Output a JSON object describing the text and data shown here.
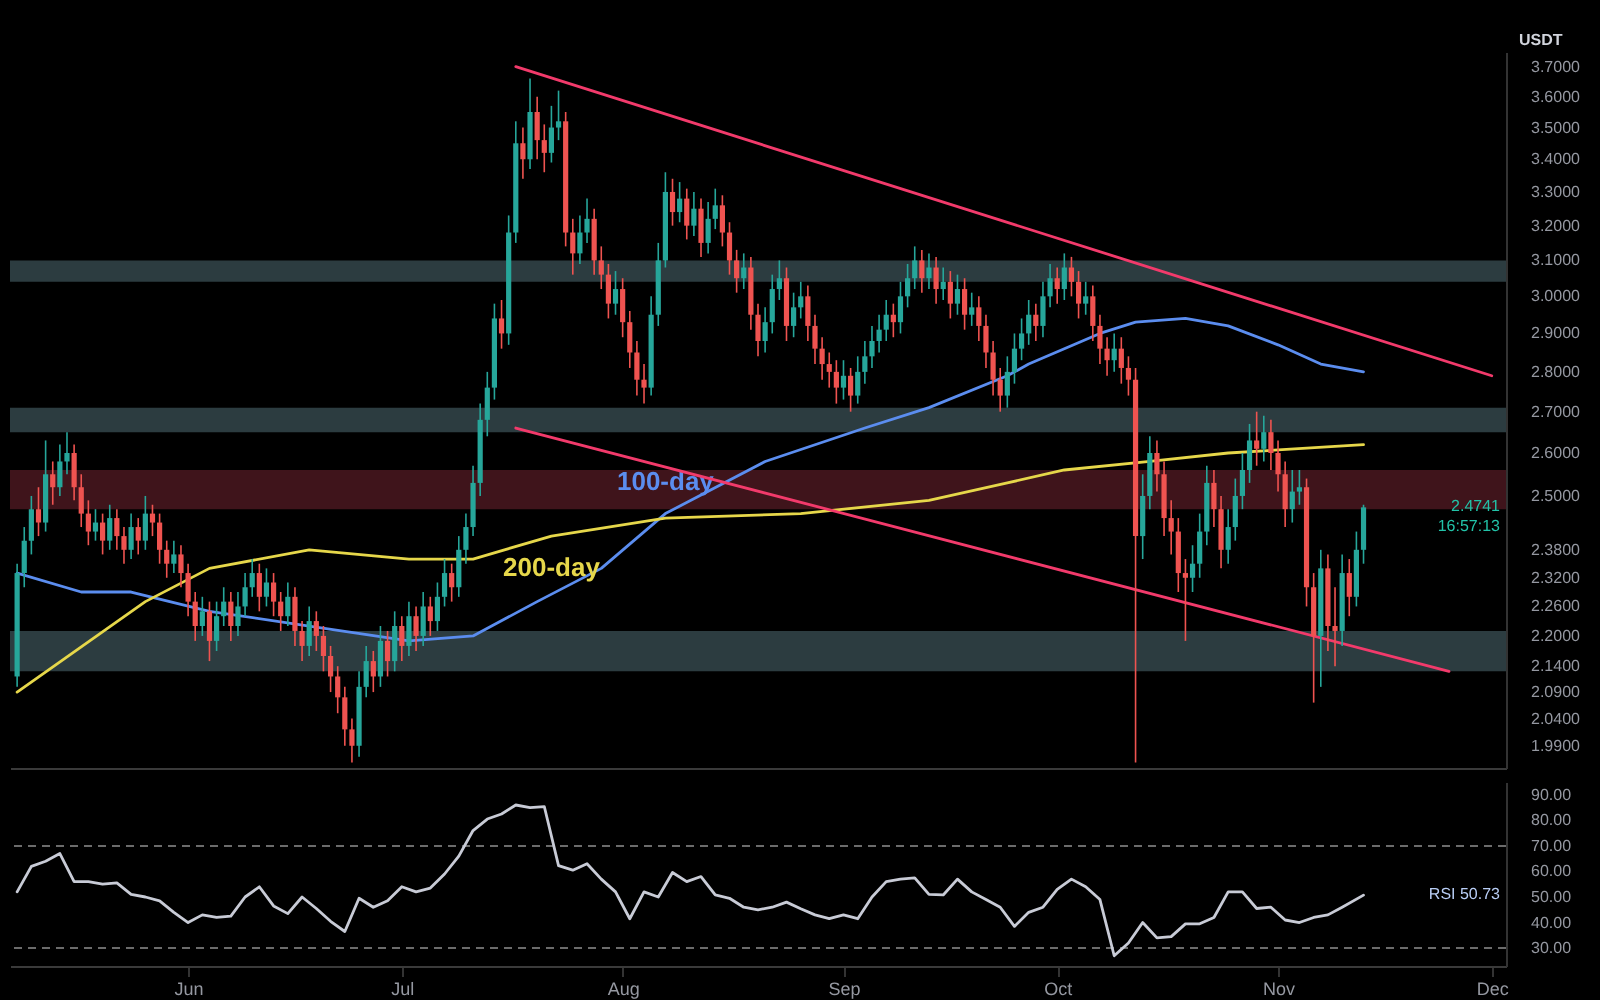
{
  "chart_data": [
    {
      "type": "candlestick",
      "ylabel": "USDT",
      "log": true,
      "tick_labels": "y",
      "xlim": [
        "--05-07",
        "--12-03"
      ],
      "xticks": [
        {
          "value": "--06-01",
          "label": "Jun"
        },
        {
          "value": "--07-01",
          "label": "Jul"
        },
        {
          "value": "--08-01",
          "label": "Aug"
        },
        {
          "value": "--09-01",
          "label": "Sep"
        },
        {
          "value": "--10-01",
          "label": "Oct"
        },
        {
          "value": "--11-01",
          "label": "Nov"
        },
        {
          "value": "--12-01",
          "label": "Dec"
        }
      ],
      "ylim": [
        1.95,
        3.75
      ],
      "yticks": [
        {
          "value": 3.7,
          "label": "3.7000"
        },
        {
          "value": 3.6,
          "label": "3.6000"
        },
        {
          "value": 3.5,
          "label": "3.5000"
        },
        {
          "value": 3.4,
          "label": "3.4000"
        },
        {
          "value": 3.3,
          "label": "3.3000"
        },
        {
          "value": 3.2,
          "label": "3.2000"
        },
        {
          "value": 3.1,
          "label": "3.1000"
        },
        {
          "value": 3.0,
          "label": "3.0000"
        },
        {
          "value": 2.9,
          "label": "2.9000"
        },
        {
          "value": 2.8,
          "label": "2.8000"
        },
        {
          "value": 2.7,
          "label": "2.7000"
        },
        {
          "value": 2.6,
          "label": "2.6000"
        },
        {
          "value": 2.5,
          "label": "2.5000"
        },
        {
          "value": 2.38,
          "label": "2.3800"
        },
        {
          "value": 2.32,
          "label": "2.3200"
        },
        {
          "value": 2.26,
          "label": "2.2600"
        },
        {
          "value": 2.2,
          "label": "2.2000"
        },
        {
          "value": 2.14,
          "label": "2.1400"
        },
        {
          "value": 2.09,
          "label": "2.0900"
        },
        {
          "value": 2.04,
          "label": "2.0400"
        },
        {
          "value": 1.99,
          "label": "1.9900"
        }
      ],
      "x": [
        "--05-08",
        "--05-09",
        "--05-10",
        "--05-11",
        "--05-12",
        "--05-13",
        "--05-14",
        "--05-15",
        "--05-16",
        "--05-17",
        "--05-18",
        "--05-19",
        "--05-20",
        "--05-21",
        "--05-22",
        "--05-23",
        "--05-24",
        "--05-25",
        "--05-26",
        "--05-27",
        "--05-28",
        "--05-29",
        "--05-30",
        "--05-31",
        "--06-01",
        "--06-02",
        "--06-03",
        "--06-04",
        "--06-05",
        "--06-06",
        "--06-07",
        "--06-08",
        "--06-09",
        "--06-10",
        "--06-11",
        "--06-12",
        "--06-13",
        "--06-14",
        "--06-15",
        "--06-16",
        "--06-17",
        "--06-18",
        "--06-19",
        "--06-20",
        "--06-21",
        "--06-22",
        "--06-23",
        "--06-24",
        "--06-25",
        "--06-26",
        "--06-27",
        "--06-28",
        "--06-29",
        "--06-30",
        "--07-01",
        "--07-02",
        "--07-03",
        "--07-04",
        "--07-05",
        "--07-06",
        "--07-07",
        "--07-08",
        "--07-09",
        "--07-10",
        "--07-11",
        "--07-12",
        "--07-13",
        "--07-14",
        "--07-15",
        "--07-16",
        "--07-17",
        "--07-18",
        "--07-19",
        "--07-20",
        "--07-21",
        "--07-22",
        "--07-23",
        "--07-24",
        "--07-25",
        "--07-26",
        "--07-27",
        "--07-28",
        "--07-29",
        "--07-30",
        "--07-31",
        "--08-01",
        "--08-02",
        "--08-03",
        "--08-04",
        "--08-05",
        "--08-06",
        "--08-07",
        "--08-08",
        "--08-09",
        "--08-10",
        "--08-11",
        "--08-12",
        "--08-13",
        "--08-14",
        "--08-15",
        "--08-16",
        "--08-17",
        "--08-18",
        "--08-19",
        "--08-20",
        "--08-21",
        "--08-22",
        "--08-23",
        "--08-24",
        "--08-25",
        "--08-26",
        "--08-27",
        "--08-28",
        "--08-29",
        "--08-30",
        "--08-31",
        "--09-01",
        "--09-02",
        "--09-03",
        "--09-04",
        "--09-05",
        "--09-06",
        "--09-07",
        "--09-08",
        "--09-09",
        "--09-10",
        "--09-11",
        "--09-12",
        "--09-13",
        "--09-14",
        "--09-15",
        "--09-16",
        "--09-17",
        "--09-18",
        "--09-19",
        "--09-20",
        "--09-21",
        "--09-22",
        "--09-23",
        "--09-24",
        "--09-25",
        "--09-26",
        "--09-27",
        "--09-28",
        "--09-29",
        "--09-30",
        "--10-01",
        "--10-02",
        "--10-03",
        "--10-04",
        "--10-05",
        "--10-06",
        "--10-07",
        "--10-08",
        "--10-09",
        "--10-10",
        "--10-11",
        "--10-12",
        "--10-13",
        "--10-14",
        "--10-15",
        "--10-16",
        "--10-17",
        "--10-18",
        "--10-19",
        "--10-20",
        "--10-21",
        "--10-22",
        "--10-23",
        "--10-24",
        "--10-25",
        "--10-26",
        "--10-27",
        "--10-28",
        "--10-29",
        "--10-30",
        "--10-31",
        "--11-01",
        "--11-02",
        "--11-03",
        "--11-04",
        "--11-05",
        "--11-06",
        "--11-07",
        "--11-08",
        "--11-09",
        "--11-10",
        "--11-11",
        "--11-12",
        "--11-13"
      ],
      "ohlc": [
        [
          2.12,
          2.35,
          2.1,
          2.33
        ],
        [
          2.33,
          2.43,
          2.3,
          2.4
        ],
        [
          2.4,
          2.5,
          2.37,
          2.47
        ],
        [
          2.47,
          2.52,
          2.41,
          2.44
        ],
        [
          2.44,
          2.63,
          2.42,
          2.55
        ],
        [
          2.55,
          2.58,
          2.48,
          2.52
        ],
        [
          2.52,
          2.62,
          2.5,
          2.58
        ],
        [
          2.58,
          2.65,
          2.55,
          2.6
        ],
        [
          2.6,
          2.62,
          2.49,
          2.52
        ],
        [
          2.52,
          2.55,
          2.43,
          2.46
        ],
        [
          2.46,
          2.49,
          2.39,
          2.42
        ],
        [
          2.42,
          2.47,
          2.4,
          2.44
        ],
        [
          2.44,
          2.46,
          2.37,
          2.4
        ],
        [
          2.4,
          2.48,
          2.38,
          2.45
        ],
        [
          2.45,
          2.47,
          2.38,
          2.41
        ],
        [
          2.41,
          2.43,
          2.35,
          2.38
        ],
        [
          2.38,
          2.46,
          2.36,
          2.43
        ],
        [
          2.43,
          2.45,
          2.37,
          2.4
        ],
        [
          2.4,
          2.5,
          2.38,
          2.46
        ],
        [
          2.46,
          2.48,
          2.41,
          2.44
        ],
        [
          2.44,
          2.46,
          2.35,
          2.38
        ],
        [
          2.38,
          2.4,
          2.32,
          2.35
        ],
        [
          2.35,
          2.4,
          2.33,
          2.37
        ],
        [
          2.37,
          2.39,
          2.3,
          2.33
        ],
        [
          2.33,
          2.35,
          2.24,
          2.27
        ],
        [
          2.27,
          2.29,
          2.19,
          2.22
        ],
        [
          2.22,
          2.28,
          2.2,
          2.25
        ],
        [
          2.25,
          2.27,
          2.15,
          2.19
        ],
        [
          2.19,
          2.27,
          2.17,
          2.24
        ],
        [
          2.24,
          2.3,
          2.22,
          2.27
        ],
        [
          2.27,
          2.29,
          2.19,
          2.22
        ],
        [
          2.22,
          2.29,
          2.2,
          2.26
        ],
        [
          2.26,
          2.33,
          2.24,
          2.3
        ],
        [
          2.3,
          2.36,
          2.28,
          2.33
        ],
        [
          2.33,
          2.35,
          2.25,
          2.28
        ],
        [
          2.28,
          2.34,
          2.26,
          2.31
        ],
        [
          2.31,
          2.33,
          2.24,
          2.27
        ],
        [
          2.27,
          2.29,
          2.21,
          2.24
        ],
        [
          2.24,
          2.31,
          2.22,
          2.28
        ],
        [
          2.28,
          2.3,
          2.18,
          2.21
        ],
        [
          2.21,
          2.23,
          2.15,
          2.18
        ],
        [
          2.18,
          2.26,
          2.16,
          2.23
        ],
        [
          2.23,
          2.25,
          2.17,
          2.2
        ],
        [
          2.2,
          2.22,
          2.13,
          2.16
        ],
        [
          2.16,
          2.18,
          2.09,
          2.12
        ],
        [
          2.12,
          2.14,
          2.05,
          2.08
        ],
        [
          2.08,
          2.1,
          1.99,
          2.02
        ],
        [
          2.02,
          2.04,
          1.96,
          1.99
        ],
        [
          1.99,
          2.13,
          1.97,
          2.1
        ],
        [
          2.1,
          2.18,
          2.08,
          2.15
        ],
        [
          2.15,
          2.17,
          2.09,
          2.12
        ],
        [
          2.12,
          2.22,
          2.1,
          2.19
        ],
        [
          2.19,
          2.21,
          2.12,
          2.15
        ],
        [
          2.15,
          2.25,
          2.13,
          2.22
        ],
        [
          2.22,
          2.24,
          2.15,
          2.18
        ],
        [
          2.18,
          2.27,
          2.16,
          2.24
        ],
        [
          2.24,
          2.26,
          2.17,
          2.2
        ],
        [
          2.2,
          2.29,
          2.18,
          2.26
        ],
        [
          2.26,
          2.28,
          2.2,
          2.23
        ],
        [
          2.23,
          2.31,
          2.21,
          2.28
        ],
        [
          2.28,
          2.36,
          2.26,
          2.33
        ],
        [
          2.33,
          2.35,
          2.27,
          2.3
        ],
        [
          2.3,
          2.41,
          2.28,
          2.38
        ],
        [
          2.38,
          2.46,
          2.35,
          2.43
        ],
        [
          2.43,
          2.57,
          2.41,
          2.53
        ],
        [
          2.53,
          2.72,
          2.5,
          2.68
        ],
        [
          2.68,
          2.8,
          2.64,
          2.76
        ],
        [
          2.76,
          2.98,
          2.73,
          2.94
        ],
        [
          2.94,
          2.99,
          2.86,
          2.9
        ],
        [
          2.9,
          3.23,
          2.87,
          3.18
        ],
        [
          3.18,
          3.52,
          3.15,
          3.45
        ],
        [
          3.45,
          3.5,
          3.34,
          3.4
        ],
        [
          3.4,
          3.66,
          3.37,
          3.55
        ],
        [
          3.55,
          3.6,
          3.4,
          3.46
        ],
        [
          3.46,
          3.51,
          3.36,
          3.42
        ],
        [
          3.42,
          3.57,
          3.39,
          3.5
        ],
        [
          3.5,
          3.62,
          3.46,
          3.52
        ],
        [
          3.52,
          3.55,
          3.14,
          3.18
        ],
        [
          3.18,
          3.22,
          3.06,
          3.12
        ],
        [
          3.12,
          3.23,
          3.09,
          3.18
        ],
        [
          3.18,
          3.28,
          3.15,
          3.22
        ],
        [
          3.22,
          3.25,
          3.06,
          3.1
        ],
        [
          3.1,
          3.14,
          3.02,
          3.06
        ],
        [
          3.06,
          3.09,
          2.94,
          2.98
        ],
        [
          2.98,
          3.07,
          2.95,
          3.02
        ],
        [
          3.02,
          3.05,
          2.89,
          2.93
        ],
        [
          2.93,
          2.96,
          2.81,
          2.85
        ],
        [
          2.85,
          2.88,
          2.74,
          2.78
        ],
        [
          2.78,
          2.82,
          2.72,
          2.76
        ],
        [
          2.76,
          3.0,
          2.74,
          2.95
        ],
        [
          2.95,
          3.15,
          2.92,
          3.1
        ],
        [
          3.1,
          3.36,
          3.08,
          3.3
        ],
        [
          3.3,
          3.34,
          3.2,
          3.24
        ],
        [
          3.24,
          3.33,
          3.21,
          3.28
        ],
        [
          3.28,
          3.31,
          3.16,
          3.2
        ],
        [
          3.2,
          3.3,
          3.17,
          3.25
        ],
        [
          3.25,
          3.28,
          3.11,
          3.15
        ],
        [
          3.15,
          3.27,
          3.12,
          3.22
        ],
        [
          3.22,
          3.31,
          3.19,
          3.26
        ],
        [
          3.26,
          3.29,
          3.14,
          3.18
        ],
        [
          3.18,
          3.21,
          3.06,
          3.1
        ],
        [
          3.1,
          3.13,
          3.01,
          3.05
        ],
        [
          3.05,
          3.12,
          3.02,
          3.08
        ],
        [
          3.08,
          3.11,
          2.91,
          2.95
        ],
        [
          2.95,
          2.98,
          2.84,
          2.88
        ],
        [
          2.88,
          2.97,
          2.85,
          2.93
        ],
        [
          2.93,
          3.06,
          2.9,
          3.02
        ],
        [
          3.02,
          3.1,
          2.99,
          3.05
        ],
        [
          3.05,
          3.08,
          2.88,
          2.92
        ],
        [
          2.92,
          3.01,
          2.89,
          2.97
        ],
        [
          2.97,
          3.04,
          2.94,
          3.0
        ],
        [
          3.0,
          3.03,
          2.88,
          2.92
        ],
        [
          2.92,
          2.95,
          2.82,
          2.86
        ],
        [
          2.86,
          2.89,
          2.78,
          2.82
        ],
        [
          2.82,
          2.85,
          2.76,
          2.8
        ],
        [
          2.8,
          2.83,
          2.72,
          2.76
        ],
        [
          2.76,
          2.83,
          2.73,
          2.79
        ],
        [
          2.79,
          2.81,
          2.7,
          2.74
        ],
        [
          2.74,
          2.84,
          2.72,
          2.8
        ],
        [
          2.8,
          2.88,
          2.77,
          2.84
        ],
        [
          2.84,
          2.92,
          2.81,
          2.88
        ],
        [
          2.88,
          2.95,
          2.85,
          2.91
        ],
        [
          2.91,
          2.99,
          2.88,
          2.95
        ],
        [
          2.95,
          2.98,
          2.89,
          2.93
        ],
        [
          2.93,
          3.04,
          2.9,
          3.0
        ],
        [
          3.0,
          3.09,
          2.97,
          3.05
        ],
        [
          3.05,
          3.14,
          3.02,
          3.1
        ],
        [
          3.1,
          3.13,
          3.01,
          3.05
        ],
        [
          3.05,
          3.12,
          3.02,
          3.08
        ],
        [
          3.08,
          3.11,
          2.98,
          3.02
        ],
        [
          3.02,
          3.08,
          2.99,
          3.04
        ],
        [
          3.04,
          3.07,
          2.94,
          2.98
        ],
        [
          2.98,
          3.06,
          2.95,
          3.02
        ],
        [
          3.02,
          3.05,
          2.91,
          2.95
        ],
        [
          2.95,
          3.01,
          2.92,
          2.97
        ],
        [
          2.97,
          3.0,
          2.88,
          2.92
        ],
        [
          2.92,
          2.95,
          2.81,
          2.85
        ],
        [
          2.85,
          2.88,
          2.74,
          2.78
        ],
        [
          2.78,
          2.81,
          2.7,
          2.74
        ],
        [
          2.74,
          2.84,
          2.71,
          2.8
        ],
        [
          2.8,
          2.9,
          2.77,
          2.86
        ],
        [
          2.86,
          2.94,
          2.83,
          2.9
        ],
        [
          2.9,
          2.99,
          2.87,
          2.95
        ],
        [
          2.95,
          2.98,
          2.88,
          2.92
        ],
        [
          2.92,
          3.04,
          2.89,
          3.0
        ],
        [
          3.0,
          3.09,
          2.97,
          3.05
        ],
        [
          3.05,
          3.08,
          2.98,
          3.02
        ],
        [
          3.02,
          3.12,
          2.99,
          3.08
        ],
        [
          3.08,
          3.11,
          3.0,
          3.04
        ],
        [
          3.04,
          3.07,
          2.94,
          2.98
        ],
        [
          2.98,
          3.04,
          2.95,
          3.0
        ],
        [
          3.0,
          3.03,
          2.88,
          2.92
        ],
        [
          2.92,
          2.95,
          2.82,
          2.86
        ],
        [
          2.86,
          2.89,
          2.79,
          2.83
        ],
        [
          2.83,
          2.9,
          2.8,
          2.86
        ],
        [
          2.86,
          2.89,
          2.77,
          2.81
        ],
        [
          2.81,
          2.84,
          2.74,
          2.78
        ],
        [
          2.78,
          2.81,
          1.96,
          2.41
        ],
        [
          2.41,
          2.55,
          2.36,
          2.5
        ],
        [
          2.5,
          2.64,
          2.47,
          2.6
        ],
        [
          2.6,
          2.63,
          2.51,
          2.55
        ],
        [
          2.55,
          2.58,
          2.41,
          2.45
        ],
        [
          2.45,
          2.49,
          2.37,
          2.42
        ],
        [
          2.42,
          2.45,
          2.29,
          2.33
        ],
        [
          2.33,
          2.36,
          2.19,
          2.32
        ],
        [
          2.32,
          2.39,
          2.29,
          2.35
        ],
        [
          2.35,
          2.46,
          2.32,
          2.42
        ],
        [
          2.42,
          2.57,
          2.39,
          2.53
        ],
        [
          2.53,
          2.56,
          2.43,
          2.47
        ],
        [
          2.47,
          2.5,
          2.34,
          2.38
        ],
        [
          2.38,
          2.47,
          2.35,
          2.43
        ],
        [
          2.43,
          2.54,
          2.4,
          2.5
        ],
        [
          2.5,
          2.6,
          2.47,
          2.56
        ],
        [
          2.56,
          2.67,
          2.53,
          2.63
        ],
        [
          2.63,
          2.7,
          2.57,
          2.61
        ],
        [
          2.61,
          2.69,
          2.58,
          2.65
        ],
        [
          2.65,
          2.68,
          2.56,
          2.6
        ],
        [
          2.6,
          2.63,
          2.51,
          2.55
        ],
        [
          2.55,
          2.58,
          2.43,
          2.47
        ],
        [
          2.47,
          2.56,
          2.44,
          2.51
        ],
        [
          2.51,
          2.56,
          2.48,
          2.52
        ],
        [
          2.52,
          2.54,
          2.26,
          2.3
        ],
        [
          2.3,
          2.33,
          2.07,
          2.2
        ],
        [
          2.2,
          2.38,
          2.1,
          2.34
        ],
        [
          2.34,
          2.37,
          2.17,
          2.22
        ],
        [
          2.22,
          2.3,
          2.14,
          2.21
        ],
        [
          2.21,
          2.37,
          2.18,
          2.33
        ],
        [
          2.33,
          2.36,
          2.24,
          2.28
        ],
        [
          2.28,
          2.42,
          2.26,
          2.38
        ],
        [
          2.38,
          2.48,
          2.35,
          2.4741
        ]
      ],
      "series": [
        {
          "type": "line",
          "name": "100-day",
          "color": "#5b8def",
          "x": [
            "--05-08",
            "--05-17",
            "--05-24",
            "--06-04",
            "--06-18",
            "--07-02",
            "--07-11",
            "--07-20",
            "--07-29",
            "--08-07",
            "--08-21",
            "--09-04",
            "--09-13",
            "--09-24",
            "--09-27",
            "--10-07",
            "--10-12",
            "--10-19",
            "--10-25",
            "--11-01",
            "--11-07",
            "--11-13"
          ],
          "values": [
            2.33,
            2.29,
            2.29,
            2.25,
            2.22,
            2.19,
            2.2,
            2.27,
            2.34,
            2.46,
            2.58,
            2.66,
            2.71,
            2.79,
            2.82,
            2.9,
            2.93,
            2.94,
            2.92,
            2.87,
            2.82,
            2.8
          ]
        },
        {
          "type": "line",
          "name": "200-day",
          "color": "#e6d74a",
          "x": [
            "--05-08",
            "--05-26",
            "--06-04",
            "--06-18",
            "--07-02",
            "--07-11",
            "--07-22",
            "--08-07",
            "--08-26",
            "--09-13",
            "--09-24",
            "--10-02",
            "--10-14",
            "--10-25",
            "--11-13"
          ],
          "values": [
            2.09,
            2.27,
            2.34,
            2.38,
            2.36,
            2.36,
            2.41,
            2.45,
            2.46,
            2.49,
            2.53,
            2.56,
            2.58,
            2.6,
            2.62
          ]
        },
        {
          "type": "line",
          "color": "#f23a6b",
          "x": [
            "--07-17",
            "--12-01"
          ],
          "values": [
            3.7,
            2.79
          ]
        },
        {
          "type": "line",
          "color": "#f23a6b",
          "x": [
            "--07-17",
            "--11-25"
          ],
          "values": [
            2.66,
            2.13
          ]
        }
      ],
      "bands": [
        {
          "axis": "y",
          "from": 3.04,
          "to": 3.1,
          "color": "#34474b"
        },
        {
          "axis": "y",
          "from": 2.65,
          "to": 2.71,
          "color": "#34474b"
        },
        {
          "axis": "y",
          "from": 2.13,
          "to": 2.21,
          "color": "#34474b"
        },
        {
          "axis": "y",
          "from": 2.47,
          "to": 2.56,
          "color": "#4a1820"
        }
      ],
      "annotations": [
        "2.4741",
        "16:57:13"
      ]
    },
    {
      "type": "line",
      "xlim": [
        "--05-07",
        "--12-03"
      ],
      "xticks": [
        {
          "value": "--06-01",
          "label": "Jun"
        },
        {
          "value": "--07-01",
          "label": "Jul"
        },
        {
          "value": "--08-01",
          "label": "Aug"
        },
        {
          "value": "--09-01",
          "label": "Sep"
        },
        {
          "value": "--10-01",
          "label": "Oct"
        },
        {
          "value": "--11-01",
          "label": "Nov"
        },
        {
          "value": "--12-01",
          "label": "Dec"
        }
      ],
      "ylim": [
        23,
        95
      ],
      "yticks": [
        {
          "value": 90,
          "label": "90.00"
        },
        {
          "value": 80,
          "label": "80.00"
        },
        {
          "value": 70,
          "label": "70.00"
        },
        {
          "value": 60,
          "label": "60.00"
        },
        {
          "value": 50,
          "label": "50.00"
        },
        {
          "value": 40,
          "label": "40.00"
        },
        {
          "value": 30,
          "label": "30.00"
        }
      ],
      "ref_lines": [
        {
          "axis": "y",
          "value": 70,
          "color": "#6b6b6b",
          "line_style": "dashed"
        },
        {
          "axis": "y",
          "value": 30,
          "color": "#6b6b6b",
          "line_style": "dashed"
        }
      ],
      "series": [
        {
          "color": "#c8cbd6",
          "x": [
            "--05-08",
            "--05-10",
            "--05-12",
            "--05-14",
            "--05-16",
            "--05-18",
            "--05-20",
            "--05-22",
            "--05-24",
            "--05-26",
            "--05-28",
            "--05-30",
            "--06-01",
            "--06-03",
            "--06-05",
            "--06-07",
            "--06-09",
            "--06-11",
            "--06-13",
            "--06-15",
            "--06-17",
            "--06-19",
            "--06-21",
            "--06-23",
            "--06-25",
            "--06-27",
            "--06-29",
            "--07-01",
            "--07-03",
            "--07-05",
            "--07-07",
            "--07-09",
            "--07-11",
            "--07-13",
            "--07-15",
            "--07-17",
            "--07-19",
            "--07-21",
            "--07-23",
            "--07-25",
            "--07-27",
            "--07-29",
            "--07-31",
            "--08-02",
            "--08-04",
            "--08-06",
            "--08-08",
            "--08-10",
            "--08-12",
            "--08-14",
            "--08-16",
            "--08-18",
            "--08-20",
            "--08-22",
            "--08-24",
            "--08-26",
            "--08-28",
            "--08-30",
            "--09-01",
            "--09-03",
            "--09-05",
            "--09-07",
            "--09-09",
            "--09-11",
            "--09-13",
            "--09-15",
            "--09-17",
            "--09-19",
            "--09-21",
            "--09-23",
            "--09-25",
            "--09-27",
            "--09-29",
            "--10-01",
            "--10-03",
            "--10-05",
            "--10-07",
            "--10-09",
            "--10-11",
            "--10-13",
            "--10-15",
            "--10-17",
            "--10-19",
            "--10-21",
            "--10-23",
            "--10-25",
            "--10-27",
            "--10-29",
            "--10-31",
            "--11-02",
            "--11-04",
            "--11-06",
            "--11-08",
            "--11-10",
            "--11-13"
          ],
          "values": [
            52,
            62,
            64,
            67,
            56,
            56,
            55,
            55.5,
            51,
            50,
            48.5,
            44,
            40,
            43,
            42,
            42.5,
            50,
            54,
            46.5,
            43.5,
            50,
            45.5,
            40.5,
            36.5,
            49.5,
            46,
            48.5,
            54,
            52,
            53.5,
            59,
            66,
            76,
            80.5,
            82.5,
            86,
            85,
            85.4,
            62.3,
            60.5,
            63,
            57,
            52,
            41.5,
            52,
            50,
            59.6,
            56,
            58,
            50.8,
            49.5,
            46,
            45,
            46,
            48,
            45.4,
            43,
            41.5,
            43,
            41.5,
            50,
            56,
            57,
            57.5,
            51,
            50.8,
            57,
            52,
            49,
            46,
            38.5,
            44,
            46,
            53,
            57,
            54,
            49,
            27,
            32,
            40,
            34,
            34.5,
            39.5,
            39.5,
            42,
            52,
            52,
            45.5,
            46,
            41,
            40,
            42,
            43,
            46,
            50.73
          ]
        }
      ],
      "annotations": [
        "RSI 50.73"
      ]
    }
  ]
}
